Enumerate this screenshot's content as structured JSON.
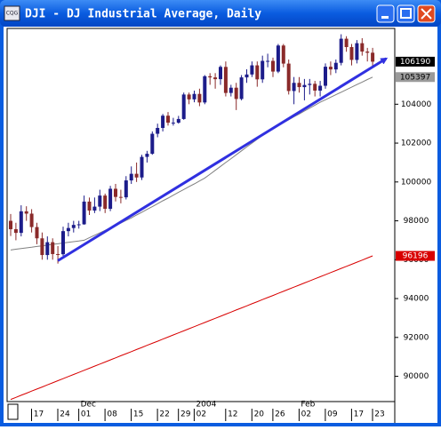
{
  "window": {
    "title": "DJI - DJ Industrial Average, Daily",
    "app_icon": "CQG"
  },
  "chart_data": {
    "type": "candlestick",
    "categories": [
      null,
      null,
      null,
      null,
      null,
      "17",
      null,
      null,
      null,
      null,
      "24",
      null,
      null,
      null,
      "01",
      null,
      null,
      null,
      null,
      "08",
      null,
      null,
      null,
      null,
      "15",
      null,
      null,
      null,
      null,
      "22",
      null,
      null,
      null,
      "29",
      null,
      null,
      "02",
      null,
      null,
      null,
      null,
      null,
      "12",
      null,
      null,
      null,
      null,
      "20",
      null,
      null,
      null,
      "26",
      null,
      null,
      null,
      null,
      "02",
      null,
      null,
      null,
      null,
      "09",
      null,
      null,
      null,
      null,
      "17",
      null,
      null,
      null,
      "23"
    ],
    "month_labels": [
      {
        "index": 14,
        "label": "Dec"
      },
      {
        "index": 36,
        "label": "2004"
      },
      {
        "index": 56,
        "label": "Feb"
      }
    ],
    "open": [
      98000,
      97570,
      97380,
      98490,
      98370,
      97680,
      97100,
      96240,
      96900,
      96290,
      96280,
      97470,
      97630,
      97790,
      97820,
      98990,
      98530,
      98730,
      99300,
      98620,
      99650,
      99230,
      99210,
      100080,
      100420,
      100230,
      101290,
      101450,
      102480,
      102780,
      103410,
      103050,
      103050,
      103240,
      104500,
      104250,
      104530,
      104090,
      105440,
      105380,
      105290,
      105920,
      104580,
      104850,
      104270,
      105380,
      105530,
      106000,
      105280,
      106230,
      106230,
      105680,
      107020,
      106090,
      104680,
      105100,
      104880,
      104990,
      105050,
      104700,
      104950,
      105930,
      105790,
      106130,
      107370,
      106940,
      106280,
      107140,
      106710,
      106650,
      null
    ],
    "high": [
      98350,
      97900,
      98800,
      98750,
      98600,
      97900,
      97400,
      97200,
      97100,
      96700,
      97700,
      97900,
      98000,
      98000,
      99300,
      99200,
      99200,
      99600,
      99400,
      99800,
      99900,
      99600,
      100300,
      100800,
      101000,
      101400,
      101600,
      102600,
      103000,
      103500,
      103600,
      103300,
      103400,
      104600,
      104600,
      104700,
      104800,
      105500,
      105600,
      105600,
      106000,
      106200,
      105000,
      105100,
      105500,
      105800,
      106200,
      106200,
      106500,
      106600,
      106400,
      107100,
      107100,
      106300,
      105400,
      105400,
      105300,
      105300,
      105200,
      105200,
      106100,
      106200,
      106300,
      107600,
      107500,
      107100,
      107300,
      107400,
      106900,
      106900,
      null
    ],
    "low": [
      97220,
      97000,
      97200,
      98000,
      97400,
      96800,
      96000,
      96000,
      96000,
      95800,
      96200,
      97200,
      97400,
      97600,
      97800,
      98300,
      98400,
      98500,
      98400,
      98500,
      99000,
      98900,
      99100,
      99900,
      100000,
      100100,
      101000,
      101400,
      102300,
      102600,
      102900,
      102900,
      103000,
      103200,
      104000,
      104100,
      103900,
      104000,
      105000,
      104800,
      105000,
      104400,
      104400,
      103700,
      104200,
      105100,
      105400,
      104900,
      105100,
      105900,
      105400,
      105600,
      105900,
      104500,
      104000,
      104600,
      104200,
      104500,
      104400,
      104400,
      104800,
      105500,
      105600,
      106000,
      106700,
      106000,
      106100,
      106500,
      106200,
      105900,
      null
    ],
    "close": [
      97570,
      97380,
      98490,
      98370,
      97680,
      97100,
      96240,
      96900,
      96290,
      96280,
      97470,
      97630,
      97790,
      97820,
      98990,
      98530,
      98730,
      99300,
      98620,
      99650,
      99230,
      99210,
      100080,
      100420,
      100230,
      101290,
      101450,
      102480,
      102780,
      103410,
      103050,
      103050,
      103240,
      104500,
      104250,
      104530,
      104090,
      105440,
      105380,
      105290,
      105920,
      104580,
      104850,
      104270,
      105380,
      105530,
      106000,
      105280,
      106230,
      106230,
      105680,
      107020,
      106090,
      104680,
      105100,
      104880,
      104990,
      105050,
      104700,
      104950,
      105930,
      105790,
      106130,
      107370,
      106940,
      106280,
      107140,
      106710,
      106650,
      106190,
      null
    ],
    "up_color": "#1c1c8a",
    "down_color": "#8a2a2a",
    "overlays": [
      {
        "color": "#808080",
        "values": [
          96500,
          96540,
          96570,
          96610,
          96640,
          96680,
          96710,
          96750,
          96790,
          96820,
          96860,
          96890,
          96930,
          96960,
          97000,
          97130,
          97260,
          97380,
          97510,
          97640,
          97770,
          97890,
          98020,
          98150,
          98300,
          98440,
          98590,
          98730,
          98880,
          99030,
          99170,
          99320,
          99470,
          99610,
          99760,
          99900,
          100050,
          100200,
          100400,
          100600,
          100800,
          101000,
          101200,
          101400,
          101600,
          101800,
          102000,
          102200,
          102400,
          102600,
          102750,
          102900,
          103050,
          103200,
          103350,
          103500,
          103650,
          103800,
          103950,
          104100,
          104230,
          104360,
          104490,
          104620,
          104750,
          104880,
          105010,
          105140,
          105270,
          105397,
          null
        ]
      },
      {
        "color": "#d80000",
        "values": [
          88810,
          88917,
          89024,
          89131,
          89238,
          89345,
          89452,
          89559,
          89666,
          89773,
          89880,
          89987,
          90094,
          90201,
          90308,
          90415,
          90522,
          90629,
          90736,
          90843,
          90950,
          91057,
          91164,
          91271,
          91378,
          91485,
          91592,
          91699,
          91806,
          91913,
          92020,
          92127,
          92234,
          92341,
          92448,
          92555,
          92662,
          92769,
          92876,
          92983,
          93090,
          93197,
          93304,
          93411,
          93518,
          93625,
          93732,
          93839,
          93946,
          94053,
          94160,
          94267,
          94374,
          94481,
          94588,
          94695,
          94802,
          94909,
          95016,
          95123,
          95230,
          95337,
          95444,
          95551,
          95658,
          95765,
          95872,
          95979,
          96086,
          96196,
          null
        ]
      }
    ],
    "last_labels": [
      {
        "value": 106190,
        "fill": "#000000",
        "text_color": "#ffffff"
      },
      {
        "value": 105397,
        "fill": "#9a9a9a",
        "text_color": "#000000"
      },
      {
        "value": 96196,
        "fill": "#d80000",
        "text_color": "#ffffff"
      }
    ],
    "trendline": {
      "start": [
        9,
        95950
      ],
      "end": [
        71.6,
        106350
      ],
      "color": "#3030e0"
    },
    "ylim": [
      88700,
      107900
    ],
    "yticks": [
      90000,
      92000,
      94000,
      96000,
      98000,
      100000,
      102000,
      104000
    ]
  }
}
